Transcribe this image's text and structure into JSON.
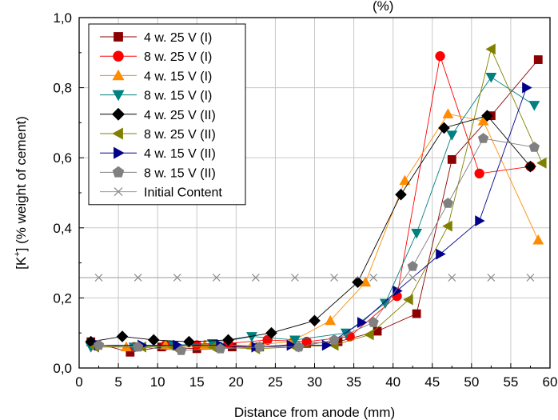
{
  "chart_data": {
    "type": "line",
    "title_fragment": "(%)",
    "xlabel": "Distance from anode (mm)",
    "ylabel_prefix": "[K",
    "ylabel_sup": "+",
    "ylabel_suffix": "] (% weight of cement)",
    "xlim": [
      0,
      60
    ],
    "ylim": [
      0.0,
      1.0
    ],
    "x_ticks": [
      0,
      5,
      10,
      15,
      20,
      25,
      30,
      35,
      40,
      45,
      50,
      55,
      60
    ],
    "x_tick_labels": [
      "0",
      "5",
      "10",
      "15",
      "20",
      "25",
      "30",
      "35",
      "40",
      "45",
      "50",
      "55",
      "60"
    ],
    "y_ticks": [
      0.0,
      0.2,
      0.4,
      0.6,
      0.8,
      1.0
    ],
    "y_tick_labels": [
      "0,0",
      "0,2",
      "0,4",
      "0,6",
      "0,8",
      "1,0"
    ],
    "grid": true,
    "legend_position": "top-left",
    "series": [
      {
        "name": "4 w. 25 V (I)",
        "color": "#8b0000",
        "marker": "square",
        "x": [
          1.5,
          6.5,
          10.5,
          15,
          19.5,
          23,
          29,
          33,
          38,
          43,
          47.5,
          52.5,
          58.5
        ],
        "y": [
          0.075,
          0.045,
          0.06,
          0.055,
          0.06,
          0.06,
          0.07,
          0.075,
          0.105,
          0.155,
          0.595,
          0.72,
          0.88
        ]
      },
      {
        "name": "8 w. 25 V (I)",
        "color": "#ff0000",
        "marker": "circle",
        "x": [
          2,
          7,
          11,
          15,
          19,
          24,
          29,
          34.5,
          40.5,
          46,
          51,
          57.5
        ],
        "y": [
          0.065,
          0.06,
          0.065,
          0.065,
          0.07,
          0.08,
          0.075,
          0.09,
          0.205,
          0.89,
          0.555,
          0.575
        ]
      },
      {
        "name": "4 w. 15 V (I)",
        "color": "#ff8c00",
        "marker": "triangle-up",
        "x": [
          2,
          6,
          11,
          16,
          22,
          27,
          32,
          36.5,
          41.5,
          47,
          51.5,
          58.5
        ],
        "y": [
          0.065,
          0.06,
          0.065,
          0.065,
          0.065,
          0.075,
          0.135,
          0.245,
          0.535,
          0.725,
          0.705,
          0.365
        ]
      },
      {
        "name": "8 w. 15 V (I)",
        "color": "#008080",
        "marker": "triangle-down",
        "x": [
          1.5,
          7,
          12,
          17,
          22,
          27.5,
          34,
          39,
          43,
          47.5,
          52.5,
          58
        ],
        "y": [
          0.06,
          0.06,
          0.065,
          0.07,
          0.09,
          0.08,
          0.1,
          0.185,
          0.385,
          0.665,
          0.83,
          0.75
        ]
      },
      {
        "name": "4 w. 25 V (II)",
        "color": "#000000",
        "marker": "diamond",
        "x": [
          1.5,
          5.5,
          9.5,
          14,
          19,
          24.5,
          30,
          35.5,
          41,
          46.5,
          52,
          57.5
        ],
        "y": [
          0.075,
          0.09,
          0.08,
          0.075,
          0.08,
          0.1,
          0.135,
          0.245,
          0.495,
          0.685,
          0.72,
          0.575
        ]
      },
      {
        "name": "8 w. 25 V (II)",
        "color": "#808000",
        "marker": "triangle-left",
        "x": [
          2,
          8,
          12,
          17,
          22.5,
          27.5,
          32.5,
          37,
          42,
          47,
          52.5,
          59
        ],
        "y": [
          0.06,
          0.06,
          0.06,
          0.06,
          0.055,
          0.06,
          0.065,
          0.095,
          0.195,
          0.405,
          0.91,
          0.585
        ]
      },
      {
        "name": "4 w. 15 V (II)",
        "color": "#00008b",
        "marker": "triangle-right",
        "x": [
          2.5,
          8,
          12.5,
          18,
          22.5,
          27,
          31.5,
          36,
          40.5,
          46,
          51,
          57
        ],
        "y": [
          0.065,
          0.065,
          0.065,
          0.065,
          0.06,
          0.065,
          0.065,
          0.13,
          0.22,
          0.325,
          0.42,
          0.8
        ]
      },
      {
        "name": "8 w. 15 V (II)",
        "color": "#808080",
        "marker": "pentagon",
        "x": [
          2.5,
          7.5,
          13,
          18,
          23,
          28,
          32.5,
          37.5,
          42.5,
          47,
          51.5,
          58
        ],
        "y": [
          0.065,
          0.06,
          0.05,
          0.055,
          0.06,
          0.06,
          0.08,
          0.13,
          0.29,
          0.47,
          0.655,
          0.63
        ]
      },
      {
        "name": "Initial Content",
        "color": "#888888",
        "marker": "cross",
        "x": [
          2.5,
          7.5,
          12.5,
          17.5,
          22.5,
          27.5,
          32.5,
          37.5,
          42.5,
          47.5,
          52.5,
          57.5
        ],
        "y": [
          0.258,
          0.258,
          0.258,
          0.258,
          0.258,
          0.258,
          0.258,
          0.258,
          0.258,
          0.258,
          0.258,
          0.258
        ],
        "line_span": [
          0,
          60
        ]
      }
    ]
  }
}
